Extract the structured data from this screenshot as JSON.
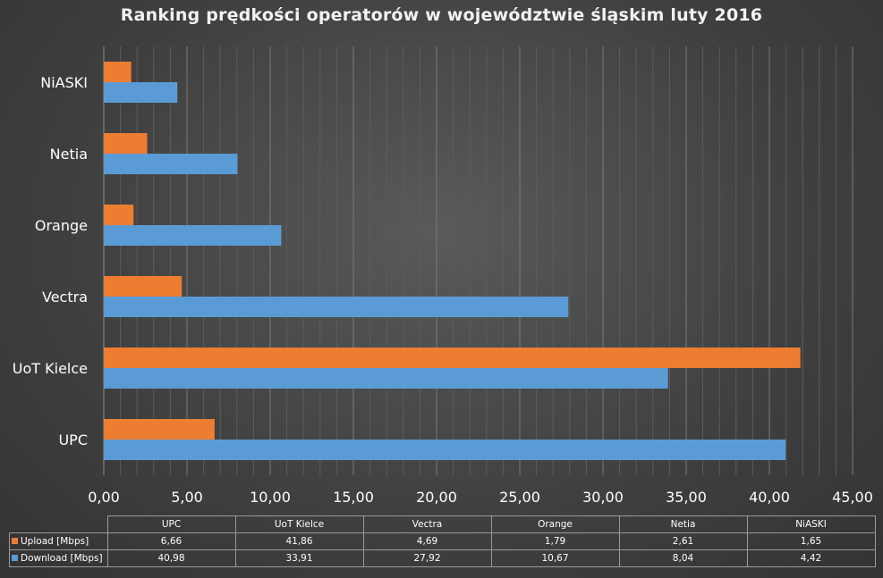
{
  "chart_data": {
    "type": "bar",
    "orientation": "horizontal",
    "title": "Ranking prędkości operatorów w województwie śląskim luty 2016",
    "categories": [
      "UPC",
      "UoT Kielce",
      "Vectra",
      "Orange",
      "Netia",
      "NiASKI"
    ],
    "series": [
      {
        "name": "Upload [Mbps]",
        "color": "#ed7d31",
        "values": [
          6.66,
          41.86,
          4.69,
          1.79,
          2.61,
          1.65
        ]
      },
      {
        "name": "Download [Mbps]",
        "color": "#5b9bd5",
        "values": [
          40.98,
          33.91,
          27.92,
          10.67,
          8.04,
          4.42
        ]
      }
    ],
    "xlim": [
      0,
      45
    ],
    "x_ticks": [
      "0,00",
      "5,00",
      "10,00",
      "15,00",
      "20,00",
      "25,00",
      "30,00",
      "35,00",
      "40,00",
      "45,00"
    ],
    "grid": true,
    "legend": "data-table",
    "table": {
      "upload_values": [
        "6,66",
        "41,86",
        "4,69",
        "1,79",
        "2,61",
        "1,65"
      ],
      "download_values": [
        "40,98",
        "33,91",
        "27,92",
        "10,67",
        "8,04",
        "4,42"
      ]
    }
  }
}
